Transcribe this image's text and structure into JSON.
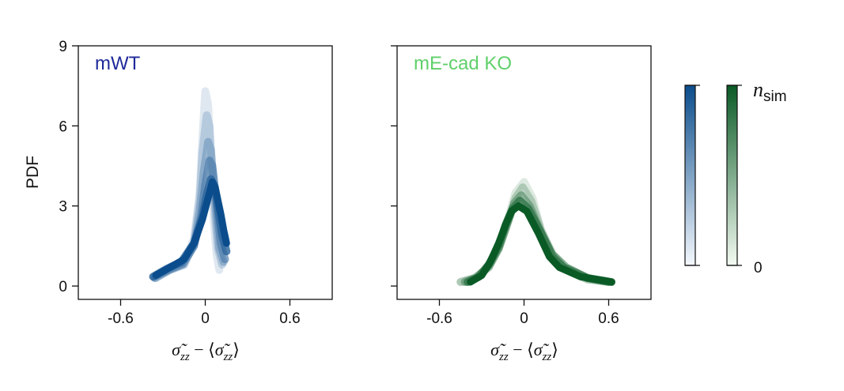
{
  "chart_data": [
    {
      "type": "line",
      "title": "mWT",
      "title_color": "#1f2a9a",
      "xlabel": "σ̃zz − ⟨σ̃zz⟩",
      "ylabel": "PDF",
      "xlim": [
        -0.9,
        0.9
      ],
      "ylim": [
        -0.5,
        9
      ],
      "xticks": [
        -0.6,
        0,
        0.6
      ],
      "xtick_labels": [
        "-0.6",
        "0",
        "0.6"
      ],
      "yticks": [
        0,
        3,
        6,
        9
      ],
      "ytick_labels": [
        "0",
        "3",
        "6",
        "9"
      ],
      "grid": false,
      "color_scale": "blues",
      "series": [
        {
          "opacity": 0.35,
          "x": [
            -0.35,
            -0.25,
            -0.15,
            -0.08,
            -0.04,
            -0.02,
            0.0,
            0.02,
            0.04,
            0.06,
            0.08,
            0.1
          ],
          "y": [
            0.3,
            0.6,
            0.8,
            1.8,
            3.5,
            5.5,
            7.3,
            6.8,
            4.5,
            2.5,
            1.2,
            0.6
          ]
        },
        {
          "opacity": 0.45,
          "x": [
            -0.35,
            -0.25,
            -0.15,
            -0.08,
            -0.04,
            -0.02,
            0.01,
            0.03,
            0.05,
            0.07,
            0.09,
            0.12
          ],
          "y": [
            0.3,
            0.6,
            0.8,
            1.6,
            3.2,
            5.0,
            6.4,
            6.0,
            4.2,
            2.6,
            1.4,
            0.8
          ]
        },
        {
          "opacity": 0.55,
          "x": [
            -0.36,
            -0.26,
            -0.16,
            -0.08,
            -0.04,
            -0.01,
            0.02,
            0.04,
            0.06,
            0.08,
            0.1,
            0.13
          ],
          "y": [
            0.3,
            0.6,
            0.8,
            1.5,
            2.8,
            4.3,
            5.4,
            5.1,
            3.8,
            2.5,
            1.4,
            0.9
          ]
        },
        {
          "opacity": 0.65,
          "x": [
            -0.36,
            -0.26,
            -0.16,
            -0.08,
            -0.03,
            0.0,
            0.03,
            0.05,
            0.07,
            0.09,
            0.11,
            0.14
          ],
          "y": [
            0.35,
            0.6,
            0.85,
            1.5,
            2.6,
            3.8,
            4.7,
            4.5,
            3.6,
            2.6,
            1.6,
            1.0
          ]
        },
        {
          "opacity": 0.8,
          "x": [
            -0.37,
            -0.27,
            -0.17,
            -0.08,
            -0.02,
            0.01,
            0.04,
            0.06,
            0.08,
            0.1,
            0.12,
            0.15
          ],
          "y": [
            0.35,
            0.65,
            0.9,
            1.6,
            2.6,
            3.4,
            4.0,
            3.8,
            3.3,
            2.6,
            1.9,
            1.3
          ]
        },
        {
          "opacity": 1.0,
          "x": [
            -0.35,
            -0.25,
            -0.15,
            -0.08,
            -0.02,
            0.02,
            0.05,
            0.07,
            0.09,
            0.11,
            0.13,
            0.15
          ],
          "y": [
            0.4,
            0.7,
            1.0,
            1.6,
            2.5,
            3.3,
            3.9,
            3.7,
            3.2,
            2.7,
            2.1,
            1.6
          ]
        }
      ]
    },
    {
      "type": "line",
      "title": "mE-cad KO",
      "title_color": "#5fd06a",
      "xlabel": "σ̃zz − ⟨σ̃zz⟩",
      "ylabel": "",
      "xlim": [
        -0.9,
        0.9
      ],
      "ylim": [
        -0.5,
        9
      ],
      "xticks": [
        -0.6,
        0,
        0.6
      ],
      "xtick_labels": [
        "-0.6",
        "0",
        "0.6"
      ],
      "yticks": [
        0,
        3,
        6,
        9
      ],
      "ytick_labels": [],
      "grid": false,
      "color_scale": "greens",
      "series": [
        {
          "opacity": 0.35,
          "x": [
            -0.45,
            -0.35,
            -0.25,
            -0.18,
            -0.12,
            -0.06,
            0.0,
            0.06,
            0.12,
            0.2,
            0.3,
            0.45,
            0.6
          ],
          "y": [
            0.15,
            0.3,
            0.7,
            1.4,
            2.4,
            3.5,
            3.9,
            3.3,
            2.1,
            1.2,
            0.6,
            0.25,
            0.15
          ]
        },
        {
          "opacity": 0.5,
          "x": [
            -0.45,
            -0.35,
            -0.25,
            -0.18,
            -0.12,
            -0.06,
            -0.01,
            0.05,
            0.12,
            0.2,
            0.3,
            0.45,
            0.6
          ],
          "y": [
            0.15,
            0.3,
            0.7,
            1.4,
            2.3,
            3.3,
            3.7,
            3.2,
            2.1,
            1.2,
            0.6,
            0.25,
            0.15
          ]
        },
        {
          "opacity": 0.65,
          "x": [
            -0.42,
            -0.34,
            -0.25,
            -0.18,
            -0.12,
            -0.07,
            -0.02,
            0.04,
            0.12,
            0.2,
            0.3,
            0.45,
            0.6
          ],
          "y": [
            0.15,
            0.3,
            0.75,
            1.4,
            2.3,
            3.1,
            3.4,
            3.0,
            2.0,
            1.2,
            0.7,
            0.3,
            0.15
          ]
        },
        {
          "opacity": 0.8,
          "x": [
            -0.4,
            -0.32,
            -0.25,
            -0.18,
            -0.13,
            -0.08,
            -0.03,
            0.03,
            0.12,
            0.2,
            0.28,
            0.45,
            0.62
          ],
          "y": [
            0.15,
            0.35,
            0.8,
            1.5,
            2.3,
            2.9,
            3.2,
            2.9,
            2.0,
            1.1,
            0.7,
            0.3,
            0.15
          ]
        },
        {
          "opacity": 1.0,
          "x": [
            -0.38,
            -0.3,
            -0.24,
            -0.18,
            -0.13,
            -0.09,
            -0.04,
            0.02,
            0.1,
            0.18,
            0.25,
            0.4,
            0.62
          ],
          "y": [
            0.15,
            0.4,
            0.9,
            1.6,
            2.3,
            2.8,
            3.0,
            2.8,
            2.0,
            1.1,
            0.7,
            0.35,
            0.15
          ]
        }
      ]
    }
  ],
  "colorbar": {
    "label": "n",
    "label_sub": "sim",
    "top_label": "",
    "bottom_label": "0",
    "blues": [
      "#f4f8fd",
      "#0b4d8c"
    ],
    "greens": [
      "#f3fbf1",
      "#0a5a26"
    ]
  }
}
